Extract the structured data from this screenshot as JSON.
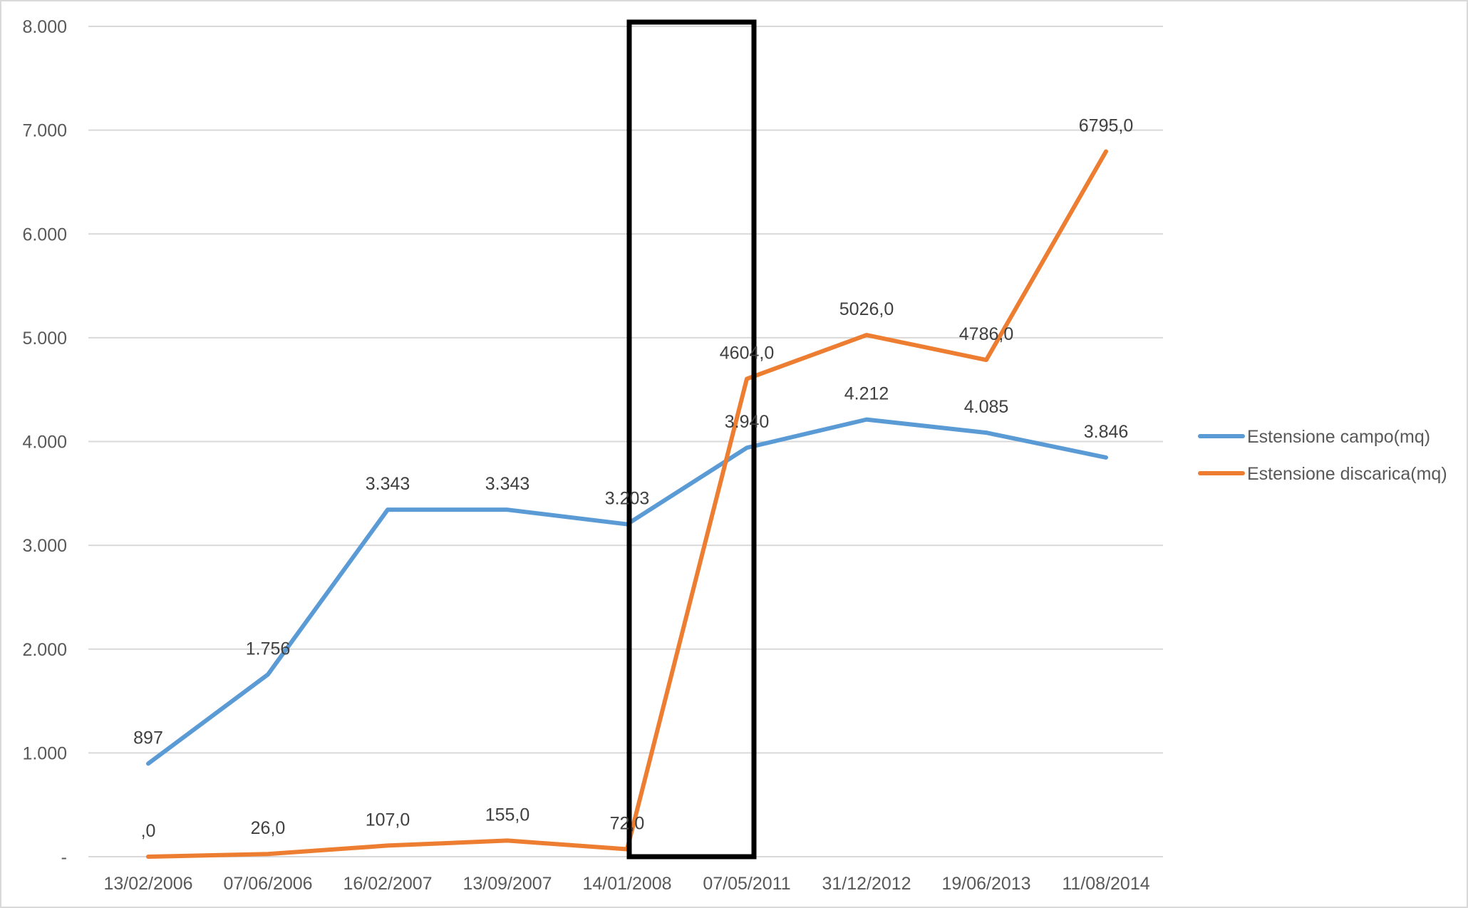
{
  "chart_data": {
    "type": "line",
    "categories": [
      "13/02/2006",
      "07/06/2006",
      "16/02/2007",
      "13/09/2007",
      "14/01/2008",
      "07/05/2011",
      "31/12/2012",
      "19/06/2013",
      "11/08/2014"
    ],
    "ylim": [
      0,
      8000
    ],
    "yticks": [
      0,
      1000,
      2000,
      3000,
      4000,
      5000,
      6000,
      7000,
      8000
    ],
    "ytick_labels": [
      "-",
      "1.000",
      "2.000",
      "3.000",
      "4.000",
      "5.000",
      "6.000",
      "7.000",
      "8.000"
    ],
    "grid": true,
    "legend_position": "right",
    "series": [
      {
        "name": "Estensione campo(mq)",
        "color": "#5b9bd5",
        "values": [
          897,
          1756,
          3343,
          3343,
          3203,
          3940,
          4212,
          4085,
          3846
        ],
        "labels": [
          "897",
          "1.756",
          "3.343",
          "3.343",
          "3.203",
          "3.940",
          "4.212",
          "4.085",
          "3.846"
        ]
      },
      {
        "name": "Estensione discarica(mq)",
        "color": "#ed7d31",
        "values": [
          0,
          26,
          107,
          155,
          72,
          4604,
          5026,
          4786,
          6795
        ],
        "labels": [
          ",0",
          "26,0",
          "107,0",
          "155,0",
          "72,0",
          "4604,0",
          "5026,0",
          "4786,0",
          "6795,0"
        ]
      }
    ],
    "annotation": {
      "type": "highlight-box",
      "from_category": "14/01/2008",
      "to_category": "07/05/2011",
      "ylim": [
        0,
        8000
      ],
      "color": "#000000"
    }
  }
}
